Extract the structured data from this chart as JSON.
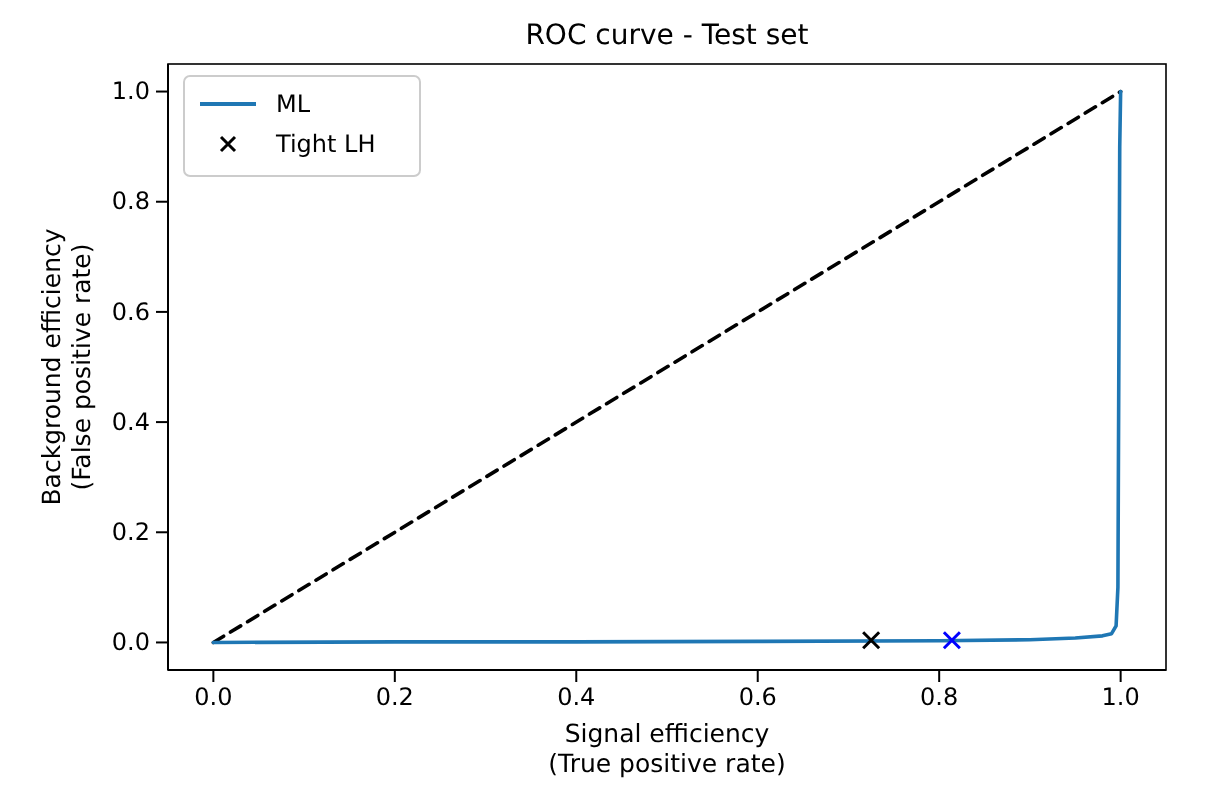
{
  "chart_data": {
    "type": "line",
    "title": "ROC curve - Test set",
    "xlabel": "Signal efficiency\n(True positive rate)",
    "ylabel": "Background efficiency\n(False positive rate)",
    "xlim": [
      -0.05,
      1.05
    ],
    "ylim": [
      -0.05,
      1.05
    ],
    "xticks": [
      {
        "value": 0,
        "label": "0.0"
      },
      {
        "value": 0.2,
        "label": "0.2"
      },
      {
        "value": 0.4,
        "label": "0.4"
      },
      {
        "value": 0.6,
        "label": "0.6"
      },
      {
        "value": 0.8,
        "label": "0.8"
      },
      {
        "value": 1,
        "label": "1.0"
      }
    ],
    "yticks": [
      {
        "value": 0,
        "label": "0.0"
      },
      {
        "value": 0.2,
        "label": "0.2"
      },
      {
        "value": 0.4,
        "label": "0.4"
      },
      {
        "value": 0.6,
        "label": "0.6"
      },
      {
        "value": 0.8,
        "label": "0.8"
      },
      {
        "value": 1,
        "label": "1.0"
      }
    ],
    "grid": false,
    "legend": "top left",
    "series": [
      {
        "color": "#000000",
        "line_style": "dashed",
        "x": [
          0,
          1
        ],
        "values": [
          0,
          1
        ]
      },
      {
        "name": "ML",
        "color": "#1f77b4",
        "line_style": "solid",
        "x": [
          0,
          0.2,
          0.4,
          0.6,
          0.8,
          0.9,
          0.95,
          0.98,
          0.99,
          0.995,
          0.997,
          0.998,
          0.999,
          1
        ],
        "values": [
          0,
          0.001,
          0.001,
          0.002,
          0.003,
          0.005,
          0.008,
          0.012,
          0.016,
          0.03,
          0.1,
          0.5,
          0.9,
          1
        ]
      },
      {
        "type": "scatter",
        "name": "Tight LH",
        "color": "#000000",
        "marker": "cross",
        "x": [
          0.725
        ],
        "values": [
          0.004
        ]
      },
      {
        "type": "scatter",
        "color": "#0000ff",
        "marker": "cross",
        "x": [
          0.814
        ],
        "values": [
          0.004
        ]
      }
    ]
  }
}
